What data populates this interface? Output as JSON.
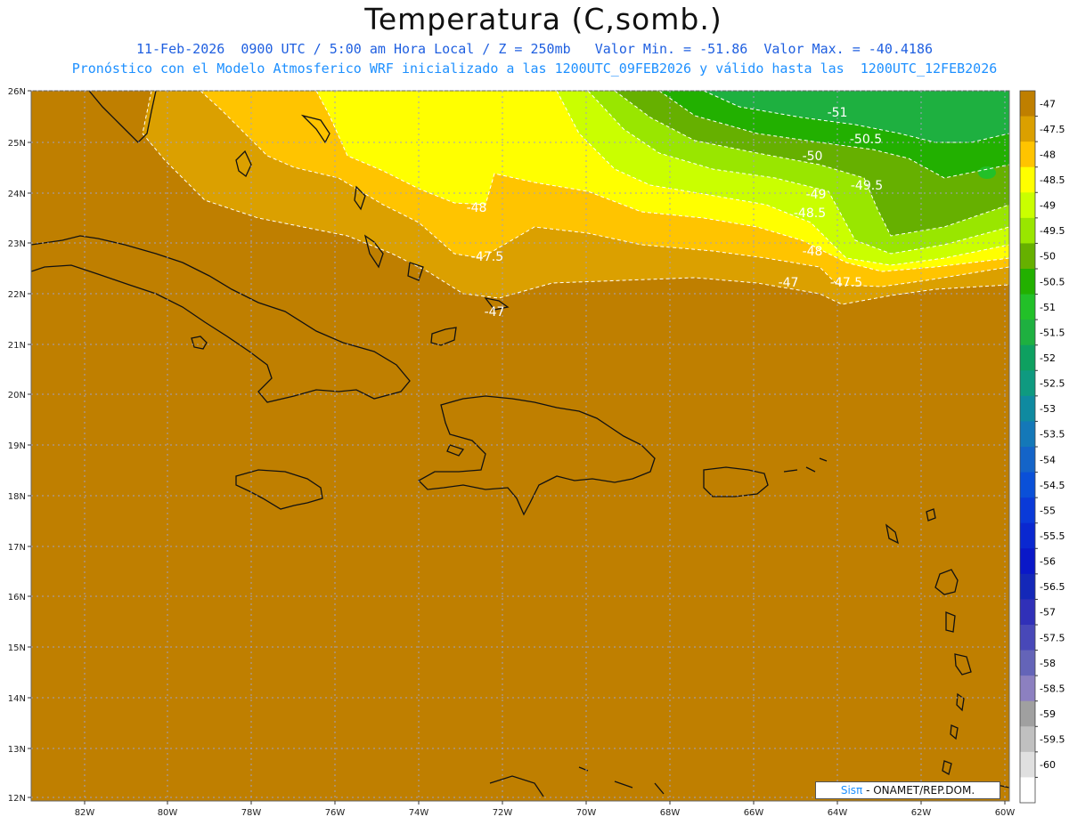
{
  "header": {
    "title": "Temperatura (C,somb.)",
    "subtitle": "11-Feb-2026  0900 UTC / 5:00 am Hora Local / Z = 250mb   Valor Min. = -51.86  Valor Max. = -40.4186",
    "run_info": "Pronóstico con el Modelo Atmosferico WRF inicializado a las 1200UTC_09FEB2026 y válido hasta las  1200UTC_12FEB2026"
  },
  "axes": {
    "lon_ticks": [
      "82W",
      "80W",
      "78W",
      "76W",
      "74W",
      "72W",
      "70W",
      "68W",
      "66W",
      "64W",
      "62W",
      "60W"
    ],
    "lat_ticks": [
      "26N",
      "25N",
      "24N",
      "23N",
      "22N",
      "21N",
      "20N",
      "19N",
      "18N",
      "17N",
      "16N",
      "15N",
      "14N",
      "13N",
      "12N"
    ]
  },
  "colorbar": {
    "labels": [
      "-47",
      "-47.5",
      "-48",
      "-48.5",
      "-49",
      "-49.5",
      "-50",
      "-50.5",
      "-51",
      "-51.5",
      "-52",
      "-52.5",
      "-53",
      "-53.5",
      "-54",
      "-54.5",
      "-55",
      "-55.5",
      "-56",
      "-56.5",
      "-57",
      "-57.5",
      "-58",
      "-58.5",
      "-59",
      "-59.5",
      "-60"
    ],
    "colors": [
      "#bf7f00",
      "#dba000",
      "#ffc400",
      "#ffff00",
      "#caff00",
      "#99e600",
      "#66b000",
      "#22b000",
      "#22c028",
      "#1eb040",
      "#0ea060",
      "#0f9a80",
      "#0f8aa0",
      "#1478b8",
      "#1464c8",
      "#0a50d8",
      "#0a3ad8",
      "#0a28d0",
      "#0a18c8",
      "#1428b8",
      "#3030b8",
      "#4848b8",
      "#6464b8",
      "#8c80c0",
      "#a0a0a0",
      "#c0c0c0",
      "#e0e0e0",
      "#ffffff"
    ]
  },
  "contour_labels": [
    "-51",
    "-50.5",
    "-50",
    "-49.5",
    "-49",
    "-48.5",
    "-48",
    "-48",
    "-47.5",
    "-47",
    "-47",
    "-47.5"
  ],
  "credit": {
    "brand": "Sisπ",
    "org": " - ONAMET/REP.DOM."
  }
}
